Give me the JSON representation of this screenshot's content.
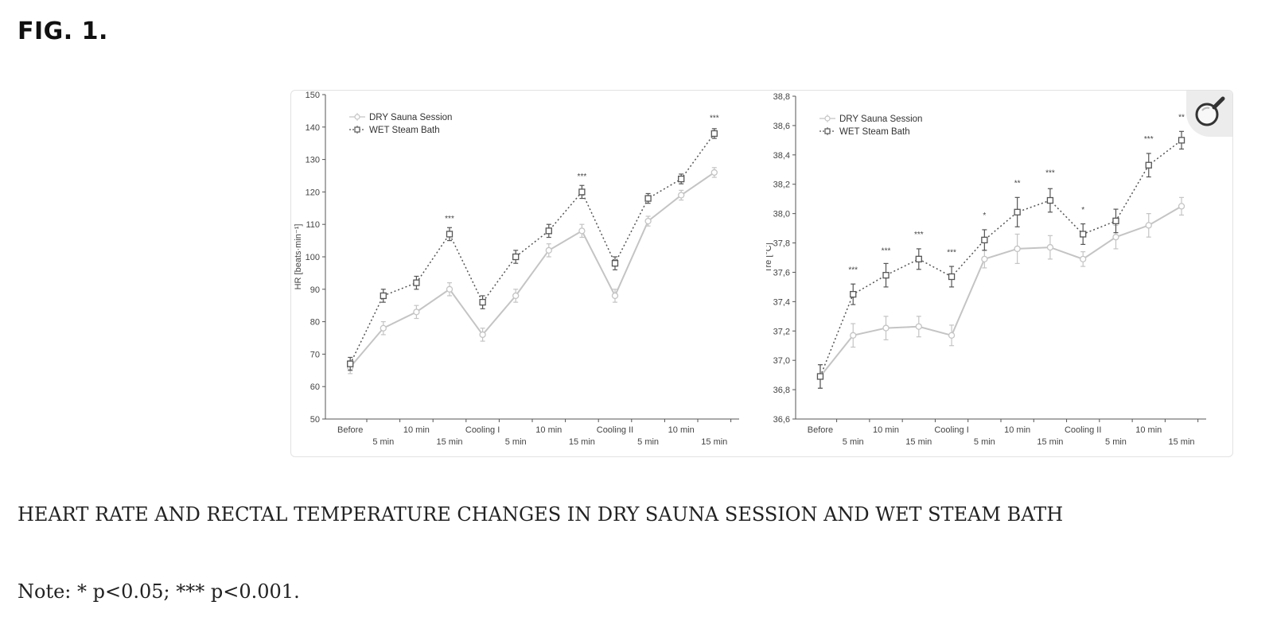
{
  "figure_label": "FIG. 1.",
  "caption": "HEART RATE AND RECTAL TEMPERATURE CHANGES IN DRY SAUNA SESSION AND WET STEAM BATH",
  "note": "Note: * p<0.05; *** p<0.001.",
  "zoom_button": {
    "icon": "magnifier-icon"
  },
  "colors": {
    "dry": "#c4c4c4",
    "wet": "#555555",
    "axis": "#555555"
  },
  "chart_data": [
    {
      "type": "line",
      "ylabel": "HR [beats·min⁻¹]",
      "ylim": [
        50,
        150
      ],
      "yticks": [
        "50",
        "60",
        "70",
        "80",
        "90",
        "100",
        "110",
        "120",
        "130",
        "140",
        "150"
      ],
      "categories": [
        "Before",
        "5 min",
        "10 min",
        "15 min",
        "Cooling I",
        "5 min",
        "10 min",
        "15 min",
        "Cooling II",
        "5 min",
        "10 min",
        "15 min"
      ],
      "legend": {
        "position": "top-left",
        "entries": [
          "DRY Sauna Session",
          "WET Steam Bath"
        ]
      },
      "series": [
        {
          "name": "DRY Sauna Session",
          "style": "solid",
          "marker": "circle",
          "values": [
            66,
            78,
            83,
            90,
            76,
            88,
            102,
            108,
            88,
            111,
            119,
            126
          ],
          "errors": [
            2,
            2,
            2,
            2,
            2,
            2,
            2,
            2,
            2,
            1.5,
            1.5,
            1.5
          ]
        },
        {
          "name": "WET Steam Bath",
          "style": "dotted",
          "marker": "square",
          "values": [
            67,
            88,
            92,
            107,
            86,
            100,
            108,
            120,
            98,
            118,
            124,
            138
          ],
          "errors": [
            2,
            2,
            2,
            2,
            2,
            2,
            2,
            2,
            2,
            1.5,
            1.5,
            1.5
          ]
        }
      ],
      "annotations": [
        {
          "index": 3,
          "y": 111,
          "text": "***"
        },
        {
          "index": 7,
          "y": 124,
          "text": "***"
        },
        {
          "index": 11,
          "y": 142,
          "text": "***"
        }
      ]
    },
    {
      "type": "line",
      "ylabel": "Tre [°C]",
      "ylim": [
        36.6,
        38.8
      ],
      "yticks": [
        "36,6",
        "36,8",
        "37,0",
        "37,2",
        "37,4",
        "37,6",
        "37,8",
        "38,0",
        "38,2",
        "38,4",
        "38,6",
        "38,8"
      ],
      "categories": [
        "Before",
        "5 min",
        "10 min",
        "15 min",
        "Cooling I",
        "5 min",
        "10 min",
        "15 min",
        "Cooling II",
        "5 min",
        "10 min",
        "15 min"
      ],
      "legend": {
        "position": "top-left",
        "entries": [
          "DRY Sauna Session",
          "WET Steam Bath"
        ]
      },
      "series": [
        {
          "name": "DRY Sauna Session",
          "style": "solid",
          "marker": "circle",
          "values": [
            36.89,
            37.17,
            37.22,
            37.23,
            37.17,
            37.69,
            37.76,
            37.77,
            37.69,
            37.84,
            37.92,
            38.05
          ],
          "errors": [
            0.08,
            0.08,
            0.08,
            0.07,
            0.07,
            0.06,
            0.1,
            0.08,
            0.05,
            0.08,
            0.08,
            0.06
          ]
        },
        {
          "name": "WET Steam Bath",
          "style": "dotted",
          "marker": "square",
          "values": [
            36.89,
            37.45,
            37.58,
            37.69,
            37.57,
            37.82,
            38.01,
            38.09,
            37.86,
            37.95,
            38.33,
            38.5
          ],
          "errors": [
            0.08,
            0.07,
            0.08,
            0.07,
            0.07,
            0.07,
            0.1,
            0.08,
            0.07,
            0.08,
            0.08,
            0.06
          ]
        }
      ],
      "annotations": [
        {
          "index": 1,
          "y": 37.6,
          "text": "***"
        },
        {
          "index": 2,
          "y": 37.73,
          "text": "***"
        },
        {
          "index": 3,
          "y": 37.84,
          "text": "***"
        },
        {
          "index": 4,
          "y": 37.72,
          "text": "***"
        },
        {
          "index": 5,
          "y": 37.97,
          "text": "*"
        },
        {
          "index": 6,
          "y": 38.19,
          "text": "**"
        },
        {
          "index": 7,
          "y": 38.26,
          "text": "***"
        },
        {
          "index": 8,
          "y": 38.01,
          "text": "*"
        },
        {
          "index": 10,
          "y": 38.49,
          "text": "***"
        },
        {
          "index": 11,
          "y": 38.64,
          "text": "**"
        }
      ]
    }
  ]
}
